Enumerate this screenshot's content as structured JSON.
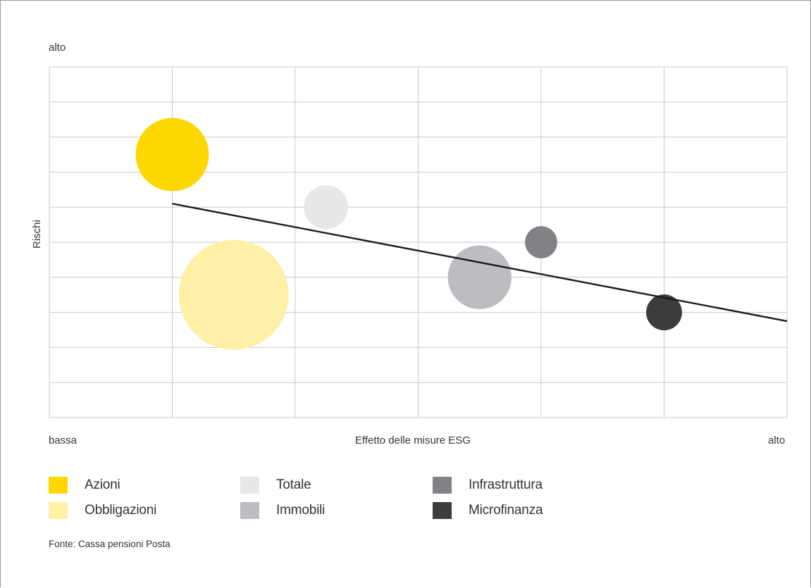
{
  "chart_data": {
    "type": "bubble",
    "title": "",
    "xlabel": "Effetto delle misure ESG",
    "ylabel": "Rischi",
    "x_low_label": "bassa",
    "x_high_label": "alto",
    "y_high_label": "alto",
    "xlim": [
      0,
      6
    ],
    "ylim": [
      0,
      10
    ],
    "grid": true,
    "legend_position": "bottom",
    "series": [
      {
        "name": "Azioni",
        "x": 1.0,
        "y": 7.5,
        "size": 1.0,
        "color": "#FFD700"
      },
      {
        "name": "Obbligazioni",
        "x": 1.5,
        "y": 3.5,
        "size": 1.5,
        "color": "#FFF0A8"
      },
      {
        "name": "Totale",
        "x": 2.25,
        "y": 6.0,
        "size": 0.6,
        "color": "#E7E7E8"
      },
      {
        "name": "Immobili",
        "x": 3.5,
        "y": 4.0,
        "size": 0.87,
        "color": "#BCBDC0"
      },
      {
        "name": "Infrastruttura",
        "x": 4.0,
        "y": 5.0,
        "size": 0.44,
        "color": "#818285"
      },
      {
        "name": "Microfinanza",
        "x": 5.0,
        "y": 3.0,
        "size": 0.49,
        "color": "#3C3C3C"
      }
    ],
    "trendline": {
      "x": [
        1.0,
        6.0
      ],
      "y": [
        6.1,
        2.75
      ],
      "color": "#1a1a1a"
    }
  },
  "legend": [
    {
      "label": "Azioni",
      "color": "#FFD700"
    },
    {
      "label": "Obbligazioni",
      "color": "#FFF0A8"
    },
    {
      "label": "Totale",
      "color": "#E7E7E8"
    },
    {
      "label": "Immobili",
      "color": "#BCBDC0"
    },
    {
      "label": "Infrastruttura",
      "color": "#818285"
    },
    {
      "label": "Microfinanza",
      "color": "#3C3C3C"
    }
  ],
  "source": "Fonte: Cassa pensioni Posta"
}
